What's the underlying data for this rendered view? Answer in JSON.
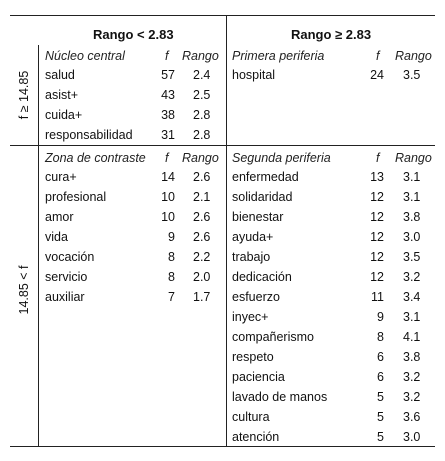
{
  "header": {
    "left": "Rango < 2.83",
    "right": "Rango ≥ 2.83"
  },
  "rows_labels": {
    "top": "f ≥ 14.85",
    "bottom": "14.85 < f"
  },
  "quadrants": {
    "nucleo": {
      "title": "Núcleo central",
      "col_f": "f",
      "col_rango": "Rango",
      "items": [
        {
          "word": "salud",
          "f": "57",
          "rango": "2.4"
        },
        {
          "word": "asist+",
          "f": "43",
          "rango": "2.5"
        },
        {
          "word": "cuida+",
          "f": "38",
          "rango": "2.8"
        },
        {
          "word": "responsabilidad",
          "f": "31",
          "rango": "2.8"
        }
      ]
    },
    "primera": {
      "title": "Primera periferia",
      "col_f": "f",
      "col_rango": "Rango",
      "items": [
        {
          "word": "hospital",
          "f": "24",
          "rango": "3.5"
        }
      ]
    },
    "contraste": {
      "title": "Zona de contraste",
      "col_f": "f",
      "col_rango": "Rango",
      "items": [
        {
          "word": "cura+",
          "f": "14",
          "rango": "2.6"
        },
        {
          "word": "profesional",
          "f": "10",
          "rango": "2.1"
        },
        {
          "word": "amor",
          "f": "10",
          "rango": "2.6"
        },
        {
          "word": "vida",
          "f": "9",
          "rango": "2.6"
        },
        {
          "word": "vocación",
          "f": "8",
          "rango": "2.2"
        },
        {
          "word": "servicio",
          "f": "8",
          "rango": "2.0"
        },
        {
          "word": "auxiliar",
          "f": "7",
          "rango": "1.7"
        }
      ]
    },
    "segunda": {
      "title": "Segunda periferia",
      "col_f": "f",
      "col_rango": "Rango",
      "items": [
        {
          "word": "enfermedad",
          "f": "13",
          "rango": "3.1"
        },
        {
          "word": "solidaridad",
          "f": "12",
          "rango": "3.1"
        },
        {
          "word": "bienestar",
          "f": "12",
          "rango": "3.8"
        },
        {
          "word": "ayuda+",
          "f": "12",
          "rango": "3.0"
        },
        {
          "word": "trabajo",
          "f": "12",
          "rango": "3.5"
        },
        {
          "word": "dedicación",
          "f": "12",
          "rango": "3.2"
        },
        {
          "word": "esfuerzo",
          "f": "11",
          "rango": "3.4"
        },
        {
          "word": "inyec+",
          "f": "9",
          "rango": "3.1"
        },
        {
          "word": "compañerismo",
          "f": "8",
          "rango": "4.1"
        },
        {
          "word": "respeto",
          "f": "6",
          "rango": "3.8"
        },
        {
          "word": "paciencia",
          "f": "6",
          "rango": "3.2"
        },
        {
          "word": "lavado de manos",
          "f": "5",
          "rango": "3.2"
        },
        {
          "word": "cultura",
          "f": "5",
          "rango": "3.6"
        },
        {
          "word": "atención",
          "f": "5",
          "rango": "3.0"
        }
      ]
    }
  }
}
